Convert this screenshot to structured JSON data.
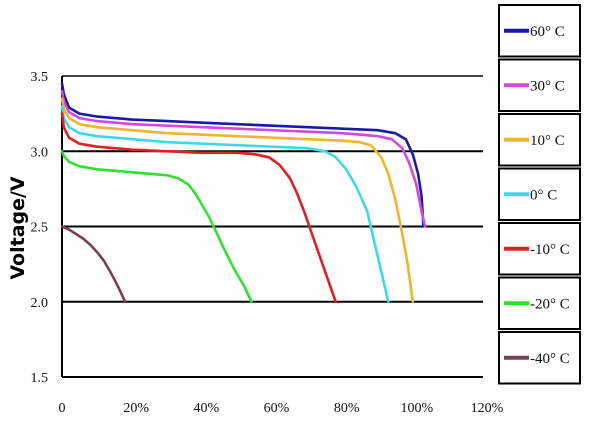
{
  "chart_data": {
    "type": "line",
    "title": "",
    "xlabel": "",
    "ylabel": "Voltage/V",
    "xlim": [
      0,
      120
    ],
    "ylim": [
      1.5,
      3.5
    ],
    "x_ticks": [
      0,
      20,
      40,
      60,
      80,
      100,
      120
    ],
    "x_tick_labels": [
      "0",
      "20%",
      "40%",
      "60%",
      "80%",
      "100%",
      "120%"
    ],
    "y_ticks": [
      1.5,
      2.0,
      2.5,
      3.0,
      3.5
    ],
    "y_tick_labels": [
      "1.5",
      "2.0",
      "2.5",
      "3.0",
      "3.5"
    ],
    "h_gridlines": [
      2.0,
      2.5,
      3.0
    ],
    "grid": "horizontal lines at 2.0, 2.5, 3.0",
    "legend_position": "right",
    "series": [
      {
        "name": "60° C",
        "color": "#1a1aa8",
        "points": [
          [
            0,
            3.45
          ],
          [
            0.5,
            3.38
          ],
          [
            2,
            3.29
          ],
          [
            5,
            3.25
          ],
          [
            10,
            3.23
          ],
          [
            20,
            3.21
          ],
          [
            30,
            3.2
          ],
          [
            40,
            3.19
          ],
          [
            50,
            3.18
          ],
          [
            60,
            3.17
          ],
          [
            70,
            3.16
          ],
          [
            80,
            3.15
          ],
          [
            90,
            3.14
          ],
          [
            95,
            3.12
          ],
          [
            98,
            3.08
          ],
          [
            100,
            2.98
          ],
          [
            101.5,
            2.85
          ],
          [
            102.5,
            2.7
          ],
          [
            103,
            2.5
          ]
        ]
      },
      {
        "name": "30° C",
        "color": "#d44ad8",
        "points": [
          [
            0,
            3.4
          ],
          [
            0.5,
            3.33
          ],
          [
            2,
            3.26
          ],
          [
            5,
            3.22
          ],
          [
            10,
            3.2
          ],
          [
            20,
            3.18
          ],
          [
            30,
            3.17
          ],
          [
            40,
            3.16
          ],
          [
            50,
            3.15
          ],
          [
            60,
            3.14
          ],
          [
            70,
            3.13
          ],
          [
            80,
            3.12
          ],
          [
            90,
            3.1
          ],
          [
            94,
            3.08
          ],
          [
            97,
            3.02
          ],
          [
            99,
            2.92
          ],
          [
            101,
            2.78
          ],
          [
            102.5,
            2.6
          ],
          [
            103.5,
            2.5
          ]
        ]
      },
      {
        "name": "10° C",
        "color": "#f0b430",
        "points": [
          [
            0,
            3.35
          ],
          [
            0.5,
            3.28
          ],
          [
            2,
            3.22
          ],
          [
            5,
            3.18
          ],
          [
            10,
            3.16
          ],
          [
            20,
            3.14
          ],
          [
            30,
            3.12
          ],
          [
            40,
            3.11
          ],
          [
            50,
            3.1
          ],
          [
            60,
            3.09
          ],
          [
            70,
            3.08
          ],
          [
            80,
            3.07
          ],
          [
            85,
            3.06
          ],
          [
            88,
            3.04
          ],
          [
            91,
            2.96
          ],
          [
            93,
            2.85
          ],
          [
            95,
            2.68
          ],
          [
            97,
            2.45
          ],
          [
            98.5,
            2.25
          ],
          [
            100,
            2.0
          ]
        ]
      },
      {
        "name": "0° C",
        "color": "#40d8e8",
        "points": [
          [
            0,
            3.3
          ],
          [
            0.5,
            3.22
          ],
          [
            2,
            3.16
          ],
          [
            5,
            3.12
          ],
          [
            10,
            3.1
          ],
          [
            20,
            3.08
          ],
          [
            30,
            3.06
          ],
          [
            40,
            3.05
          ],
          [
            50,
            3.04
          ],
          [
            60,
            3.03
          ],
          [
            70,
            3.02
          ],
          [
            75,
            3.0
          ],
          [
            78,
            2.96
          ],
          [
            81,
            2.88
          ],
          [
            84,
            2.76
          ],
          [
            87,
            2.6
          ],
          [
            89,
            2.4
          ],
          [
            91,
            2.2
          ],
          [
            93,
            2.0
          ]
        ]
      },
      {
        "name": "-10° C",
        "color": "#e02020",
        "points": [
          [
            0,
            3.25
          ],
          [
            0.5,
            3.16
          ],
          [
            2,
            3.09
          ],
          [
            5,
            3.05
          ],
          [
            10,
            3.03
          ],
          [
            20,
            3.01
          ],
          [
            30,
            3.0
          ],
          [
            40,
            2.99
          ],
          [
            50,
            2.99
          ],
          [
            55,
            2.98
          ],
          [
            59,
            2.96
          ],
          [
            62,
            2.91
          ],
          [
            65,
            2.82
          ],
          [
            67,
            2.72
          ],
          [
            69,
            2.6
          ],
          [
            72,
            2.4
          ],
          [
            75,
            2.2
          ],
          [
            78,
            2.0
          ]
        ]
      },
      {
        "name": "-20° C",
        "color": "#30e030",
        "points": [
          [
            0,
            3.0
          ],
          [
            0.5,
            2.97
          ],
          [
            2,
            2.93
          ],
          [
            5,
            2.9
          ],
          [
            10,
            2.88
          ],
          [
            20,
            2.86
          ],
          [
            30,
            2.84
          ],
          [
            33,
            2.82
          ],
          [
            36,
            2.78
          ],
          [
            38,
            2.72
          ],
          [
            40,
            2.64
          ],
          [
            42,
            2.56
          ],
          [
            44,
            2.46
          ],
          [
            46,
            2.36
          ],
          [
            49,
            2.22
          ],
          [
            52,
            2.1
          ],
          [
            54,
            2.0
          ]
        ]
      },
      {
        "name": "-40° C",
        "color": "#7a4050",
        "points": [
          [
            0,
            2.5
          ],
          [
            2,
            2.48
          ],
          [
            4,
            2.45
          ],
          [
            6,
            2.42
          ],
          [
            8,
            2.38
          ],
          [
            10,
            2.33
          ],
          [
            12,
            2.27
          ],
          [
            14,
            2.19
          ],
          [
            16,
            2.1
          ],
          [
            18,
            2.0
          ]
        ]
      }
    ]
  },
  "legend_items": [
    {
      "label": "60° C",
      "color": "#1a1aa8"
    },
    {
      "label": "30° C",
      "color": "#d44ad8"
    },
    {
      "label": "10° C",
      "color": "#f0b430"
    },
    {
      "label": "0° C",
      "color": "#40d8e8"
    },
    {
      "label": "-10° C",
      "color": "#e02020"
    },
    {
      "label": "-20° C",
      "color": "#30e030"
    },
    {
      "label": "-40° C",
      "color": "#7a4050"
    }
  ]
}
